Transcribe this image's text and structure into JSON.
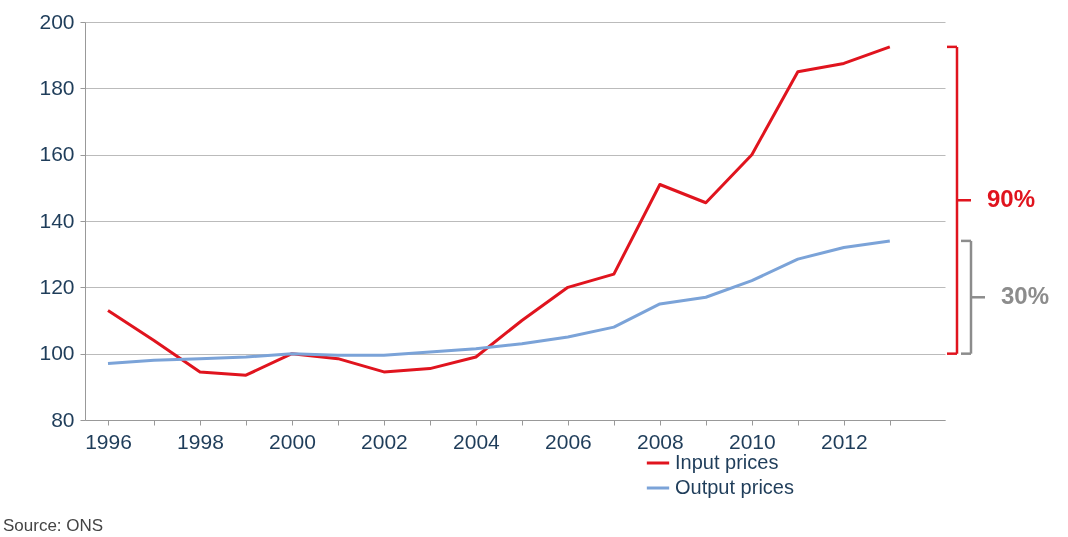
{
  "chart_data": {
    "type": "line",
    "x": [
      1996,
      1997,
      1998,
      1999,
      2000,
      2001,
      2002,
      2003,
      2004,
      2005,
      2006,
      2007,
      2008,
      2009,
      2010,
      2011,
      2012,
      2013
    ],
    "series": [
      {
        "name": "Input prices",
        "color": "#e0141e",
        "values": [
          113,
          104,
          94.5,
          93.5,
          100,
          98.5,
          94.5,
          95.5,
          99,
          110,
          120,
          124,
          151,
          145.5,
          160,
          185,
          187.5,
          192.5
        ]
      },
      {
        "name": "Output prices",
        "color": "#7ba3d8",
        "values": [
          97,
          98,
          98.5,
          99,
          100,
          99.5,
          99.5,
          100.5,
          101.5,
          103,
          105,
          108,
          115,
          117,
          122,
          128.5,
          132,
          134
        ]
      }
    ],
    "xlim": [
      1995.5,
      2014.2
    ],
    "xticks": [
      1996,
      {
        "value": 1997,
        "label": null
      },
      1998,
      {
        "value": 1999,
        "label": null
      },
      2000,
      {
        "value": 2001,
        "label": null
      },
      2002,
      {
        "value": 2003,
        "label": null
      },
      2004,
      {
        "value": 2005,
        "label": null
      },
      2006,
      {
        "value": 2007,
        "label": null
      },
      2008,
      {
        "value": 2009,
        "label": null
      },
      2010,
      {
        "value": 2011,
        "label": null
      },
      2012,
      {
        "value": 2013,
        "label": null
      }
    ],
    "ylim": [
      80,
      200
    ],
    "yticks": [
      80,
      100,
      120,
      140,
      160,
      180,
      200
    ],
    "grid": "y",
    "legend": "bottom right",
    "marker": "none",
    "line_style": "solid",
    "annotations": [
      "90%",
      "30%",
      "Source: ONS"
    ]
  }
}
